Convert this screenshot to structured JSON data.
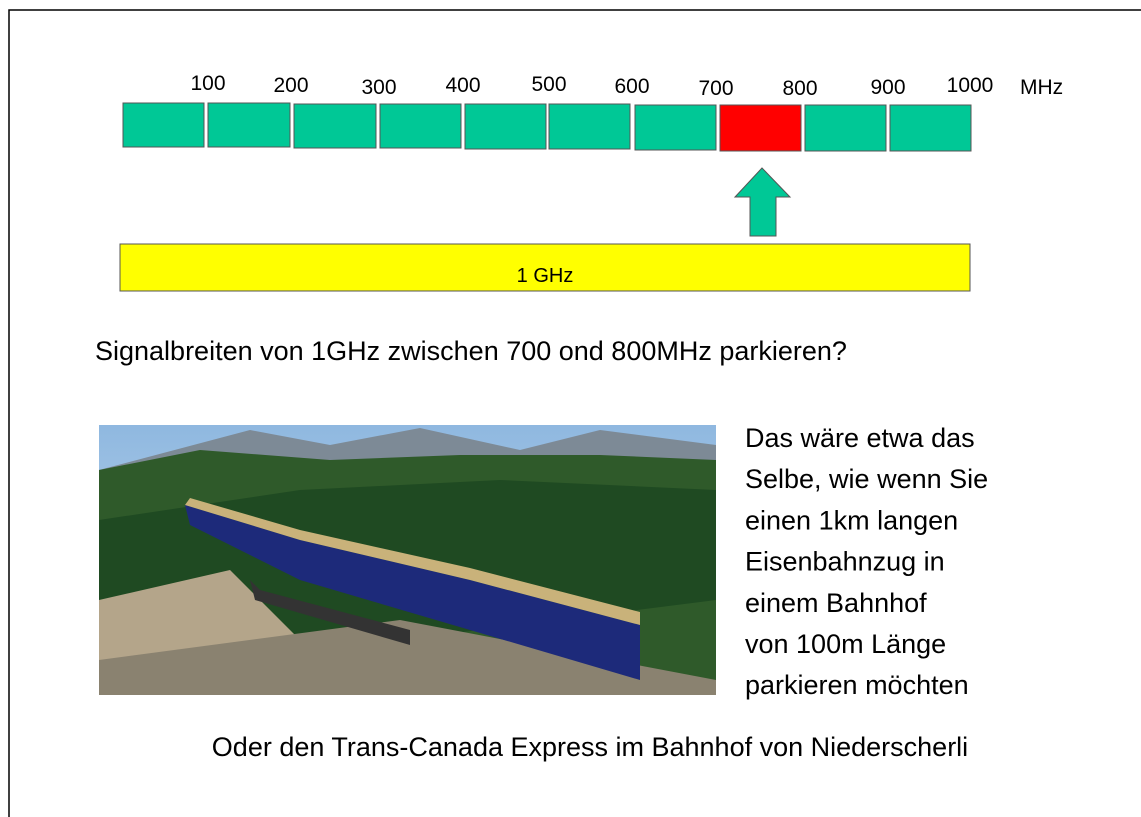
{
  "scale": {
    "labels": [
      "100",
      "200",
      "300",
      "400",
      "500",
      "600",
      "700",
      "800",
      "900",
      "1000"
    ],
    "unit": "MHz"
  },
  "bar_label": "1 GHz",
  "question": "Signalbreiten von 1GHz  zwischen 700 ond 800MHz parkieren?",
  "comparison": {
    "lines": [
      "Das wäre etwa das",
      "Selbe, wie wenn Sie",
      "einen 1km langen",
      "Eisenbahnzug in",
      "einem Bahnhof",
      "von 100m Länge",
      "parkieren möchten"
    ]
  },
  "footer": "Oder den Trans-Canada Express im Bahnhof von Niederscherli"
}
